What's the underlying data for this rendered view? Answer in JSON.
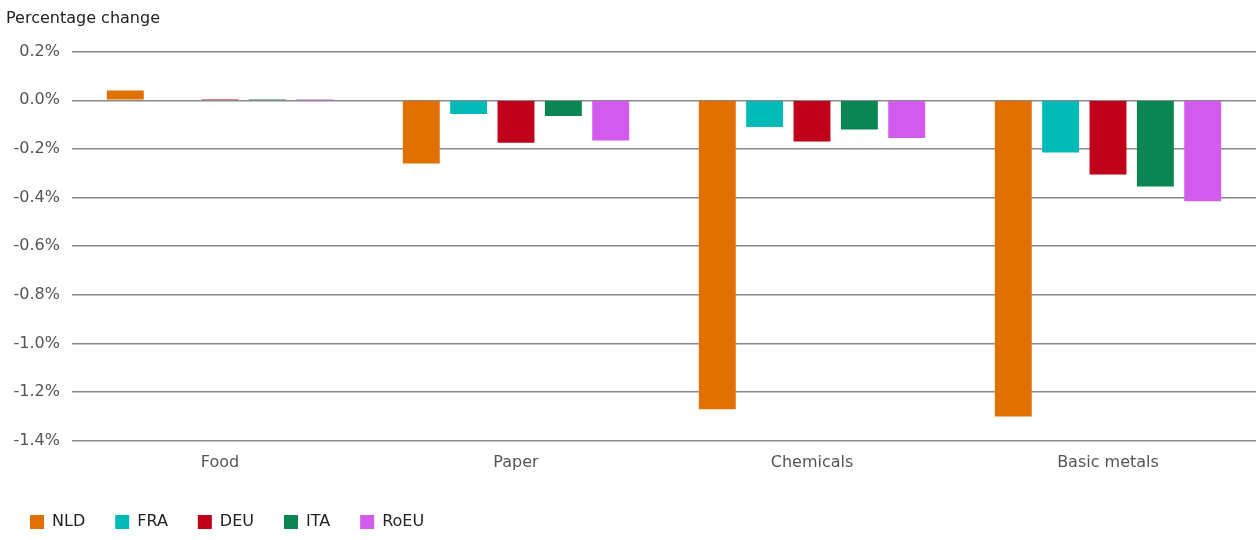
{
  "chart_data": {
    "type": "bar",
    "ylabel": "Percentage change",
    "categories": [
      "Food",
      "Paper",
      "Chemicals",
      "Basic metals"
    ],
    "series": [
      {
        "name": "NLD",
        "color": "#e07000",
        "values": [
          0.04,
          -0.26,
          -1.27,
          -1.3
        ]
      },
      {
        "name": "FRA",
        "color": "#00bab8",
        "values": [
          0.0,
          -0.057,
          -0.11,
          -0.215
        ]
      },
      {
        "name": "DEU",
        "color": "#c00018",
        "values": [
          0.005,
          -0.175,
          -0.17,
          -0.305
        ]
      },
      {
        "name": "ITA",
        "color": "#0b8553",
        "values": [
          0.005,
          -0.065,
          -0.12,
          -0.355
        ]
      },
      {
        "name": "RoEU",
        "color": "#d35bee",
        "values": [
          0.005,
          -0.165,
          -0.155,
          -0.415
        ]
      }
    ],
    "ylim": [
      -1.4,
      0.2
    ],
    "yticks": [
      {
        "value": -1.4,
        "label": "-1.4%"
      },
      {
        "value": -1.2,
        "label": "-1.2%"
      },
      {
        "value": -1.0,
        "label": "-1.0%"
      },
      {
        "value": -0.8,
        "label": "-0.8%"
      },
      {
        "value": -0.6,
        "label": "-0.6%"
      },
      {
        "value": -0.4,
        "label": "-0.4%"
      },
      {
        "value": -0.2,
        "label": "-0.2%"
      },
      {
        "value": 0,
        "label": "0.0%"
      },
      {
        "value": 0.2,
        "label": "0.2%"
      }
    ],
    "grid": "y",
    "legend": "bottom left"
  }
}
